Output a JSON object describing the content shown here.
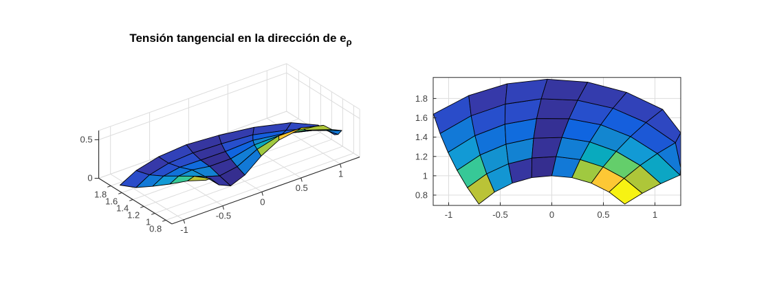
{
  "title": {
    "text": "Tensión tangencial en la dirección de e",
    "subscript": "ρ"
  },
  "colors": {
    "background": "#ffffff",
    "axis": "#262626",
    "grid": "#dcdcdc",
    "tick_label": "#3f3f3f",
    "mesh_edge": "#000000"
  },
  "colormap": {
    "name": "parula",
    "stops": [
      [
        0.0,
        53,
        42,
        135
      ],
      [
        0.063,
        54,
        57,
        168
      ],
      [
        0.125,
        44,
        74,
        199
      ],
      [
        0.188,
        16,
        99,
        225
      ],
      [
        0.25,
        18,
        124,
        214
      ],
      [
        0.313,
        20,
        140,
        204
      ],
      [
        0.375,
        18,
        155,
        214
      ],
      [
        0.438,
        9,
        171,
        189
      ],
      [
        0.5,
        55,
        200,
        151
      ],
      [
        0.563,
        113,
        208,
        94
      ],
      [
        0.625,
        171,
        199,
        57
      ],
      [
        0.688,
        217,
        186,
        50
      ],
      [
        0.75,
        254,
        195,
        56
      ],
      [
        0.813,
        252,
        207,
        48
      ],
      [
        0.875,
        245,
        229,
        27
      ],
      [
        1.0,
        249,
        251,
        14
      ]
    ]
  },
  "chart_data": [
    {
      "id": "surface-3d",
      "type": "surface",
      "view": "3d (azimuth -37.5, elevation 30)",
      "title": "Tensión tangencial en la dirección de e_ρ",
      "xticks": [
        -1,
        -0.5,
        0,
        0.5,
        1
      ],
      "yticks": [
        0.8,
        1,
        1.2,
        1.4,
        1.6,
        1.8
      ],
      "zticks": [
        0,
        0.5
      ],
      "xlim": [
        -1.15,
        1.25
      ],
      "ylim": [
        0.69,
        2.02
      ],
      "zlim": [
        0,
        0.62
      ],
      "grid": true,
      "colormap": "parula",
      "mesh": {
        "rho": [
          1,
          1.2,
          1.4,
          1.6,
          1.8,
          2
        ],
        "theta_deg": [
          135,
          123.75,
          112.5,
          101.25,
          90,
          78.75,
          67.5,
          56.25,
          45
        ],
        "twist_deg_per_rho": -10
      },
      "value_max": 0.62,
      "cell_values_rows_inner_to_outer": [
        [
          0.4,
          0.22,
          0.03,
          0.01,
          0.15,
          0.38,
          0.48,
          0.59
        ],
        [
          0.31,
          0.21,
          0.17,
          0.02,
          0.16,
          0.27,
          0.34,
          0.39
        ],
        [
          0.23,
          0.14,
          0.13,
          0.015,
          0.12,
          0.18,
          0.23,
          0.26
        ],
        [
          0.15,
          0.085,
          0.08,
          0.025,
          0.085,
          0.11,
          0.1,
          0.15
        ],
        [
          0.08,
          0.04,
          0.06,
          0.03,
          0.045,
          0.06,
          0.07,
          0.085
        ]
      ]
    },
    {
      "id": "surface-top-view",
      "type": "surface",
      "view": "top-down (view(2))",
      "title": "",
      "xticks": [
        -1,
        -0.5,
        0,
        0.5,
        1
      ],
      "yticks": [
        0.8,
        1,
        1.2,
        1.4,
        1.6,
        1.8
      ],
      "xlim": [
        -1.15,
        1.25
      ],
      "ylim": [
        0.693,
        2.018
      ],
      "grid": true,
      "note": "same mesh and cell values as surface-3d"
    }
  ]
}
